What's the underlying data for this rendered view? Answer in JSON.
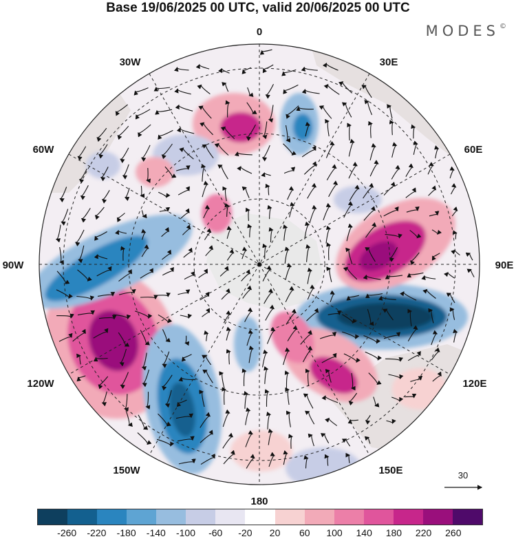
{
  "title": "Base 19/06/2025 00 UTC, valid 20/06/2025 00 UTC",
  "brand": "MODES",
  "brand_mark": "©",
  "map": {
    "projection": "polar stereographic (south pole centre)",
    "longitude_labels": {
      "top": "0",
      "top_left": "30W",
      "top_right": "30E",
      "upper_left": "60W",
      "upper_right": "60E",
      "left": "90W",
      "right": "90E",
      "lower_left": "120W",
      "lower_right": "120E",
      "bottom_left": "150W",
      "bottom_right": "150E",
      "bottom": "180"
    },
    "vector_scale_label": "30"
  },
  "colorbar": {
    "colors": [
      "#0e3f5e",
      "#13608f",
      "#2a85bf",
      "#5ea4d3",
      "#97bddf",
      "#c7cde6",
      "#e8e6f2",
      "#ffffff",
      "#f7d2d2",
      "#f2aab8",
      "#ec7fa8",
      "#e0559c",
      "#c7268b",
      "#9a0f7c",
      "#4f0a6a"
    ],
    "tick_labels": [
      "-260",
      "-220",
      "-180",
      "-140",
      "-100",
      "-60",
      "-20",
      "20",
      "60",
      "100",
      "140",
      "180",
      "220",
      "260"
    ]
  }
}
